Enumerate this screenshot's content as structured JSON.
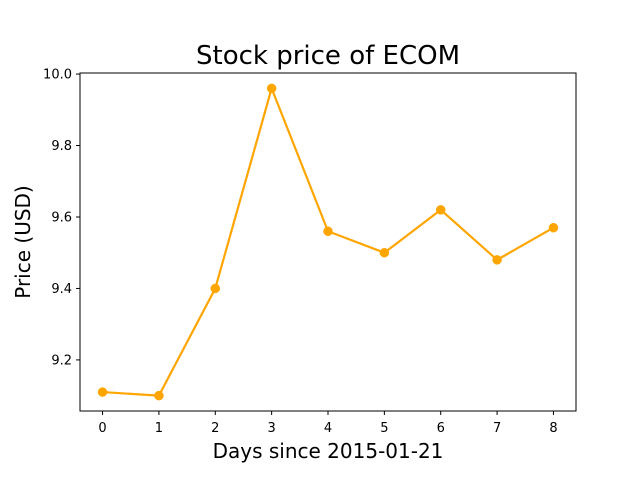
{
  "chart_data": {
    "type": "line",
    "title": "Stock price of ECOM",
    "xlabel": "Days since 2015-01-21",
    "ylabel": "Price (USD)",
    "x": [
      0,
      1,
      2,
      3,
      4,
      5,
      6,
      7,
      8
    ],
    "series": [
      {
        "values": [
          9.11,
          9.1,
          9.4,
          9.96,
          9.56,
          9.5,
          9.62,
          9.48,
          9.57
        ],
        "color": "#FFA500",
        "marker": "circle"
      }
    ],
    "xticks": [
      0,
      1,
      2,
      3,
      4,
      5,
      6,
      7,
      8
    ],
    "yticks": [
      9.2,
      9.4,
      9.6,
      9.8,
      10.0
    ],
    "ytick_labels": [
      "9.2",
      "9.4",
      "9.6",
      "9.8",
      "10.0"
    ],
    "xlim": [
      -0.4,
      8.4
    ],
    "ylim": [
      9.057,
      10.003
    ],
    "grid": false,
    "legend": false
  }
}
